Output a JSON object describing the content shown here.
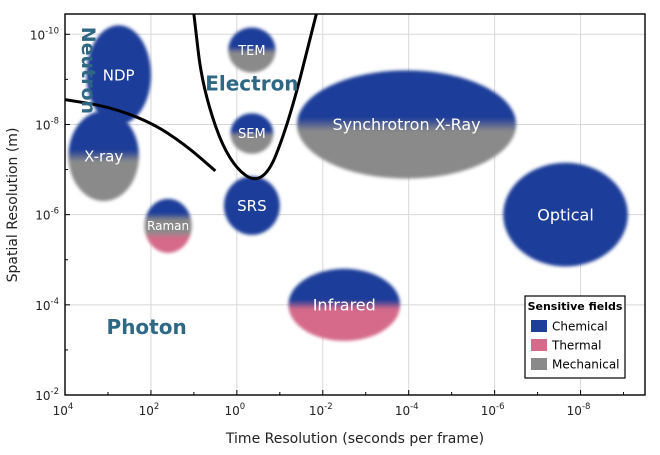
{
  "chart_data": {
    "type": "bubble-regions",
    "xlabel": "Time Resolution (seconds per frame)",
    "ylabel": "Spatial Resolution (m)",
    "x_log_ticks": [
      4,
      2,
      0,
      -2,
      -4,
      -6,
      -8
    ],
    "x_range_exp": [
      4,
      -9.5
    ],
    "y_log_ticks": [
      -10,
      -8,
      -6,
      -4,
      -2
    ],
    "y_range_exp": [
      -10.45,
      -2
    ],
    "x_axis_direction": "decreasing",
    "grid": true,
    "colors": {
      "Chemical": "#1f3e99",
      "Thermal": "#d56a8a",
      "Mechanical": "#8a8a8a"
    },
    "techniques": [
      {
        "name": "NDP",
        "x_center_exp": 2.75,
        "y_center_exp": -9.1,
        "x_halfwidth_dec": 0.75,
        "y_halfheight_dec": 1.1,
        "fields": [
          "Chemical"
        ],
        "font_size": 15
      },
      {
        "name": "TEM",
        "x_center_exp": -0.35,
        "y_center_exp": -9.65,
        "x_halfwidth_dec": 0.55,
        "y_halfheight_dec": 0.5,
        "fields": [
          "Chemical",
          "Mechanical"
        ],
        "font_size": 13
      },
      {
        "name": "SEM",
        "x_center_exp": -0.35,
        "y_center_exp": -7.8,
        "x_halfwidth_dec": 0.5,
        "y_halfheight_dec": 0.45,
        "fields": [
          "Chemical",
          "Mechanical"
        ],
        "font_size": 13
      },
      {
        "name": "X-ray",
        "x_center_exp": 3.1,
        "y_center_exp": -7.3,
        "x_halfwidth_dec": 0.82,
        "y_halfheight_dec": 1.0,
        "fields": [
          "Chemical",
          "Mechanical"
        ],
        "font_size": 15
      },
      {
        "name": "SRS",
        "x_center_exp": -0.35,
        "y_center_exp": -6.2,
        "x_halfwidth_dec": 0.65,
        "y_halfheight_dec": 0.65,
        "fields": [
          "Chemical"
        ],
        "font_size": 15
      },
      {
        "name": "Raman",
        "x_center_exp": 1.6,
        "y_center_exp": -5.75,
        "x_halfwidth_dec": 0.55,
        "y_halfheight_dec": 0.6,
        "fields": [
          "Chemical",
          "Mechanical",
          "Thermal"
        ],
        "font_size": 12
      },
      {
        "name": "Synchrotron X-Ray",
        "x_center_exp": -3.95,
        "y_center_exp": -8.0,
        "x_halfwidth_dec": 2.55,
        "y_halfheight_dec": 1.2,
        "fields": [
          "Chemical",
          "Mechanical"
        ],
        "font_size": 16
      },
      {
        "name": "Optical",
        "x_center_exp": -7.65,
        "y_center_exp": -6.0,
        "x_halfwidth_dec": 1.45,
        "y_halfheight_dec": 1.15,
        "fields": [
          "Chemical"
        ],
        "font_size": 16
      },
      {
        "name": "Infrared",
        "x_center_exp": -2.5,
        "y_center_exp": -4.0,
        "x_halfwidth_dec": 1.3,
        "y_halfheight_dec": 0.8,
        "fields": [
          "Chemical",
          "Thermal"
        ],
        "font_size": 16
      }
    ],
    "regions": [
      {
        "name": "Neutron",
        "x_exp": 3.6,
        "y_exp": -9.2,
        "font_size": 19,
        "vertical": true
      },
      {
        "name": "Electron",
        "x_exp": -0.35,
        "y_exp": -8.75,
        "font_size": 20,
        "vertical": false
      },
      {
        "name": "Photon",
        "x_exp": 2.1,
        "y_exp": -3.35,
        "font_size": 20,
        "vertical": false
      }
    ],
    "boundaries": [
      {
        "name": "electron-boundary",
        "points": [
          [
            1.0,
            -10.45
          ],
          [
            0.8,
            -8.8
          ],
          [
            0.2,
            -7.15
          ],
          [
            -0.6,
            -6.6
          ],
          [
            -1.2,
            -8.0
          ],
          [
            -1.85,
            -10.45
          ]
        ]
      },
      {
        "name": "neutron-boundary",
        "points": [
          [
            4.0,
            -8.55
          ],
          [
            3.0,
            -8.4
          ],
          [
            2.0,
            -8.05
          ],
          [
            1.2,
            -7.55
          ],
          [
            0.5,
            -6.97
          ]
        ]
      }
    ],
    "legend": {
      "title": "Sensitive fields",
      "position": "bottom-right",
      "items": [
        "Chemical",
        "Thermal",
        "Mechanical"
      ]
    }
  }
}
